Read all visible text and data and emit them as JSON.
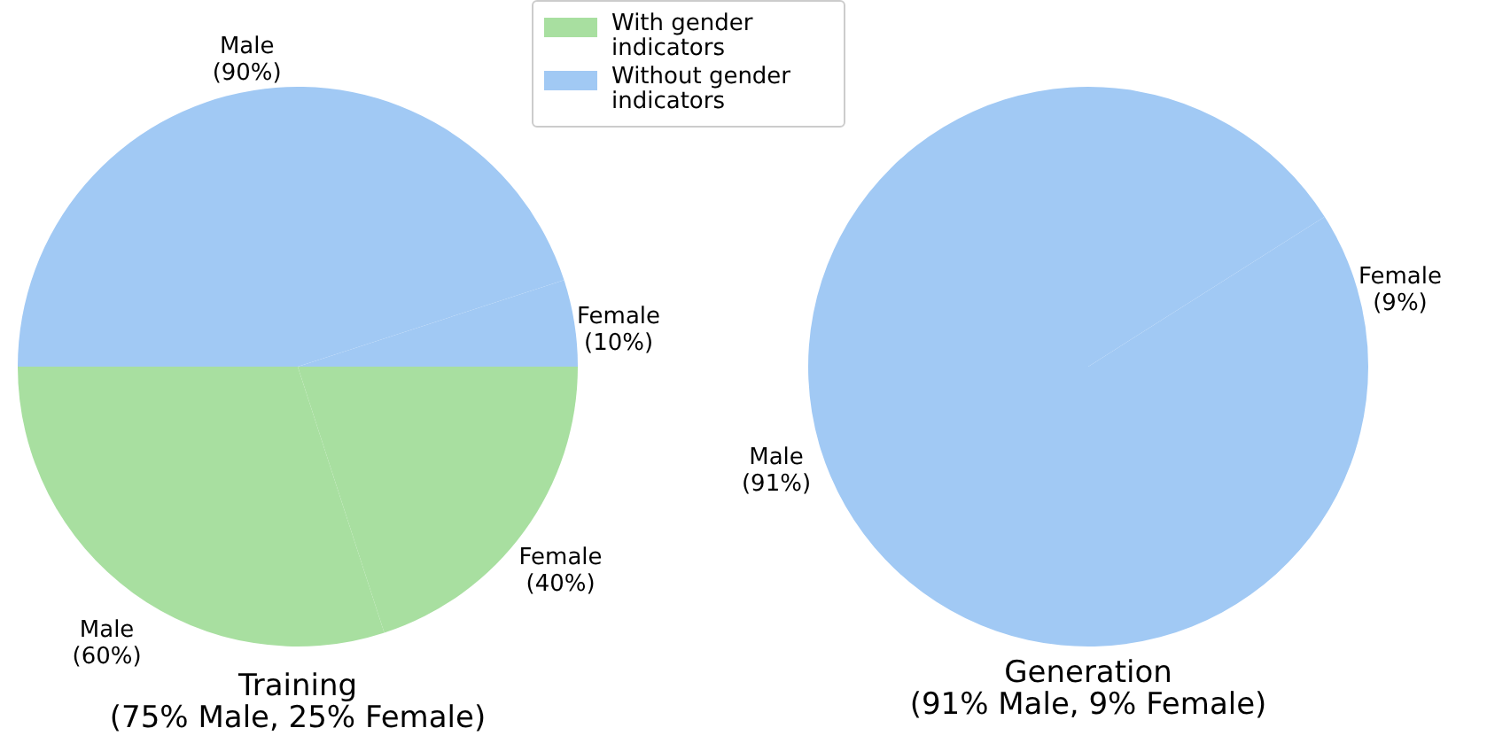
{
  "chart_data": [
    {
      "type": "pie",
      "title": "Training",
      "subtitle": "(75% Male, 25% Female)",
      "annotations": [
        "With gender indicators",
        "Without gender indicators"
      ],
      "categories": [
        "Female",
        "Male",
        "Male",
        "Female"
      ],
      "values": [
        40,
        60,
        90,
        10
      ],
      "value_labels": [
        "(40%)",
        "(60%)",
        "(90%)",
        "(10%)"
      ],
      "colors": [
        "#a8dfa0",
        "#a8dfa0",
        "#a1c9f4",
        "#a1c9f4"
      ]
    },
    {
      "type": "pie",
      "title": "Generation",
      "subtitle": "(91% Male, 9% Female)",
      "categories": [
        "Male",
        "Female"
      ],
      "values": [
        91,
        9
      ],
      "value_labels": [
        "(91%)",
        "(9%)"
      ],
      "colors": [
        "#a1c9f4",
        "#a1c9f4"
      ]
    }
  ]
}
